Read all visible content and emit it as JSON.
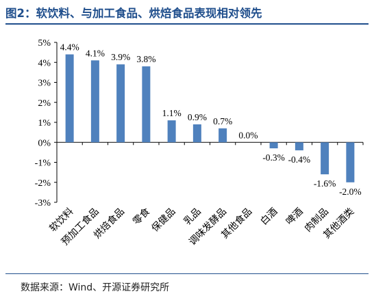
{
  "title": "图2：软饮料、与加工食品、烘焙食品表现相对领先",
  "source": "数据来源：Wind、开源证券研究所",
  "colors": {
    "bar": "#4f81bd",
    "title": "#1f4e8c",
    "axis": "#000000"
  },
  "chart_data": {
    "type": "bar",
    "categories": [
      "软饮料",
      "预加工食品",
      "烘焙食品",
      "零食",
      "保健品",
      "乳品",
      "调味发酵品",
      "其他食品",
      "白酒",
      "啤酒",
      "肉制品",
      "其他酒类"
    ],
    "values": [
      4.4,
      4.1,
      3.9,
      3.8,
      1.1,
      0.9,
      0.7,
      0.0,
      -0.3,
      -0.4,
      -1.6,
      -2.0
    ],
    "value_labels": [
      "4.4%",
      "4.1%",
      "3.9%",
      "3.8%",
      "1.1%",
      "0.9%",
      "0.7%",
      "0.0%",
      "-0.3%",
      "-0.4%",
      "-1.6%",
      "-2.0%"
    ],
    "ylim": [
      -3,
      5
    ],
    "yticks": [
      5,
      4,
      3,
      2,
      1,
      0,
      -1,
      -2,
      -3
    ],
    "ytick_labels": [
      "5%",
      "4%",
      "3%",
      "2%",
      "1%",
      "0%",
      "-1%",
      "-2%",
      "-3%"
    ],
    "grid": false,
    "legend": false
  }
}
